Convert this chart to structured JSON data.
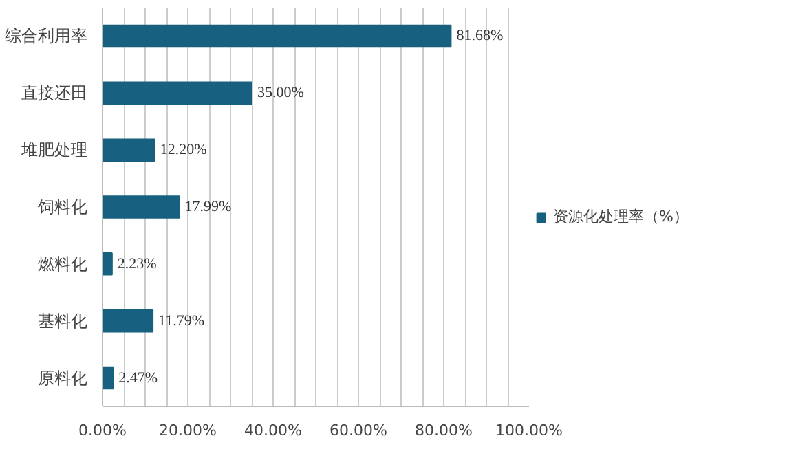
{
  "chart_data": {
    "type": "bar",
    "orientation": "horizontal",
    "categories": [
      "综合利用率",
      "直接还田",
      "堆肥处理",
      "饲料化",
      "燃料化",
      "基料化",
      "原料化"
    ],
    "series": [
      {
        "name": "资源化处理率（%）",
        "color": "#17607f",
        "values": [
          81.68,
          35.0,
          12.2,
          17.99,
          2.23,
          11.79,
          2.47
        ],
        "value_labels": [
          "81.68%",
          "35.00%",
          "12.20%",
          "17.99%",
          "2.23%",
          "11.79%",
          "2.47%"
        ]
      }
    ],
    "xlim": [
      0,
      100
    ],
    "xticks": [
      {
        "value": 0,
        "label": "0.00%"
      },
      {
        "value": 5,
        "label": null
      },
      {
        "value": 10,
        "label": null
      },
      {
        "value": 15,
        "label": null
      },
      {
        "value": 20,
        "label": "20.00%"
      },
      {
        "value": 25,
        "label": null
      },
      {
        "value": 30,
        "label": null
      },
      {
        "value": 35,
        "label": null
      },
      {
        "value": 40,
        "label": "40.00%"
      },
      {
        "value": 45,
        "label": null
      },
      {
        "value": 50,
        "label": null
      },
      {
        "value": 55,
        "label": null
      },
      {
        "value": 60,
        "label": "60.00%"
      },
      {
        "value": 65,
        "label": null
      },
      {
        "value": 70,
        "label": null
      },
      {
        "value": 75,
        "label": null
      },
      {
        "value": 80,
        "label": "80.00%"
      },
      {
        "value": 85,
        "label": null
      },
      {
        "value": 90,
        "label": null
      },
      {
        "value": 95,
        "label": null
      },
      {
        "value": 100,
        "label": "100.00%"
      }
    ],
    "grid": "x",
    "legend": "right"
  }
}
